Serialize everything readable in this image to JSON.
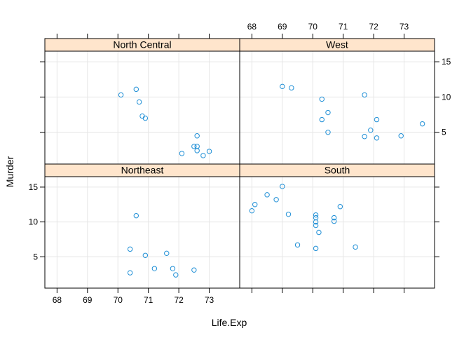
{
  "chart_data": {
    "type": "scatter",
    "layout": "lattice 2x2 panels",
    "xlabel": "Life.Exp",
    "ylabel": "Murder",
    "xlim": [
      67.6,
      74.0
    ],
    "ylim": [
      0.5,
      16.5
    ],
    "x_ticks": [
      68,
      69,
      70,
      71,
      72,
      73
    ],
    "y_ticks": [
      5,
      10,
      15
    ],
    "grid": true,
    "colors": {
      "point": "#1f8fd6",
      "strip": "#ffe5cc",
      "grid": "#e6e6e6",
      "frame": "#000000"
    },
    "panels": [
      {
        "strip": "North Central",
        "position": "top-left",
        "points": [
          [
            70.1,
            10.3
          ],
          [
            70.6,
            11.1
          ],
          [
            70.7,
            9.3
          ],
          [
            70.8,
            7.3
          ],
          [
            70.9,
            7.0
          ],
          [
            72.1,
            2.0
          ],
          [
            72.5,
            3.0
          ],
          [
            72.6,
            2.4
          ],
          [
            72.6,
            3.0
          ],
          [
            72.6,
            4.5
          ],
          [
            72.8,
            1.7
          ],
          [
            73.0,
            2.3
          ]
        ]
      },
      {
        "strip": "West",
        "position": "top-right",
        "points": [
          [
            69.0,
            11.5
          ],
          [
            69.3,
            11.3
          ],
          [
            70.3,
            9.7
          ],
          [
            70.3,
            6.8
          ],
          [
            70.5,
            7.8
          ],
          [
            70.5,
            5.0
          ],
          [
            71.7,
            10.3
          ],
          [
            71.7,
            4.4
          ],
          [
            71.9,
            5.3
          ],
          [
            72.1,
            6.8
          ],
          [
            72.1,
            4.2
          ],
          [
            72.9,
            4.5
          ],
          [
            73.6,
            6.2
          ]
        ]
      },
      {
        "strip": "Northeast",
        "position": "bottom-left",
        "points": [
          [
            70.4,
            2.7
          ],
          [
            70.4,
            6.1
          ],
          [
            70.6,
            10.9
          ],
          [
            70.9,
            5.2
          ],
          [
            71.2,
            3.3
          ],
          [
            71.6,
            5.5
          ],
          [
            71.8,
            3.3
          ],
          [
            71.9,
            2.4
          ],
          [
            72.5,
            3.1
          ]
        ]
      },
      {
        "strip": "South",
        "position": "bottom-right",
        "points": [
          [
            68.0,
            11.6
          ],
          [
            68.1,
            12.5
          ],
          [
            68.5,
            13.9
          ],
          [
            68.8,
            13.2
          ],
          [
            69.0,
            15.1
          ],
          [
            69.2,
            11.1
          ],
          [
            69.5,
            6.7
          ],
          [
            70.1,
            10.0
          ],
          [
            70.1,
            11.0
          ],
          [
            70.1,
            10.6
          ],
          [
            70.1,
            9.5
          ],
          [
            70.2,
            8.5
          ],
          [
            70.1,
            6.2
          ],
          [
            70.7,
            10.1
          ],
          [
            70.7,
            10.6
          ],
          [
            70.9,
            12.2
          ],
          [
            71.4,
            6.4
          ]
        ]
      }
    ]
  }
}
